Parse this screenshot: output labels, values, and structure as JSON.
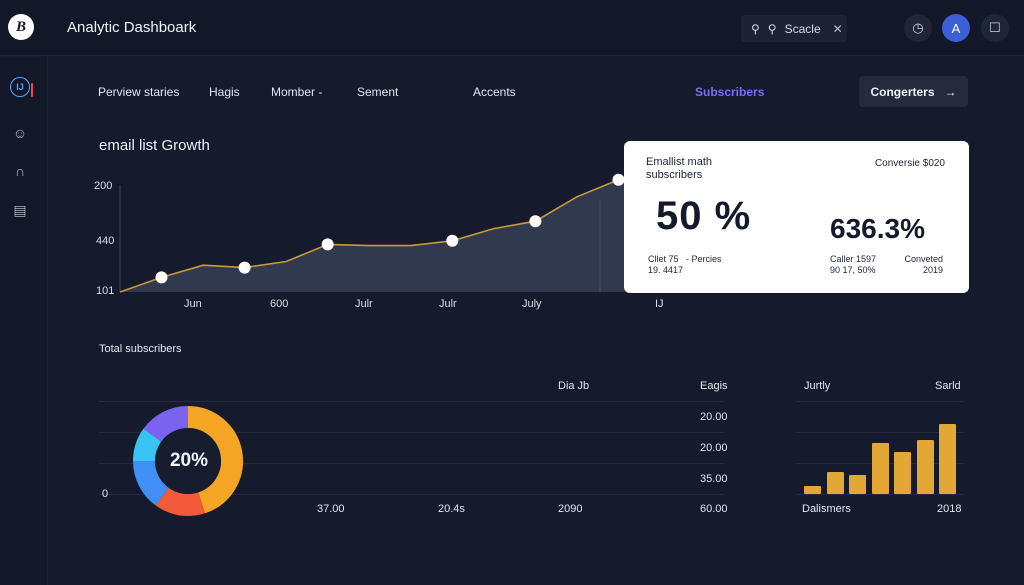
{
  "app": {
    "logo_letter": "B",
    "title": "Analytic Dashboark"
  },
  "search": {
    "text": "Scacle",
    "icon": "search-icon"
  },
  "topbar": {
    "timer_icon": "clock-icon",
    "avatar_letter": "A",
    "clipboard_icon": "clipboard-icon"
  },
  "sidebar": {
    "items": [
      {
        "icon": "badge-icon",
        "label": "IJ"
      },
      {
        "icon": "face-icon"
      },
      {
        "icon": "building-icon"
      },
      {
        "icon": "clipboard-icon"
      }
    ],
    "active_marker_color": "#ff3b5c"
  },
  "nav": {
    "items": [
      "Perview staries",
      "Hagis",
      "Momber -",
      "Sement",
      "Accents",
      "Subscribers"
    ],
    "active": "Subscribers",
    "button_label": "Congerters",
    "button_icon": "arrow-right-icon"
  },
  "growth": {
    "title": "email list Growth"
  },
  "chart_data": [
    {
      "type": "area",
      "title": "email list Growth",
      "y_ticks": [
        "200",
        "440",
        "101"
      ],
      "x_ticks": [
        "Jun",
        "600",
        "Julr",
        "Julr",
        "July",
        "IJ"
      ],
      "line_color": "#c99a3a",
      "marker_color": "#ffffff",
      "fill_color": "#3a4459",
      "note": "values estimated from marker heights; axis tick labels as printed",
      "points": [
        {
          "x": 0,
          "y": 0
        },
        {
          "x": 1,
          "y": 12,
          "marker": true
        },
        {
          "x": 2,
          "y": 22
        },
        {
          "x": 3,
          "y": 20,
          "marker": true
        },
        {
          "x": 4,
          "y": 25
        },
        {
          "x": 5,
          "y": 39,
          "marker": true
        },
        {
          "x": 6,
          "y": 38
        },
        {
          "x": 7,
          "y": 38
        },
        {
          "x": 8,
          "y": 42,
          "marker": true
        },
        {
          "x": 9,
          "y": 52
        },
        {
          "x": 10,
          "y": 58,
          "marker": true
        },
        {
          "x": 11,
          "y": 78
        },
        {
          "x": 12,
          "y": 92,
          "marker": true
        },
        {
          "x": 13,
          "y": 100
        }
      ]
    },
    {
      "type": "pie",
      "title": "Total subscribers",
      "center_label": "20%",
      "segments": [
        {
          "value": 45,
          "color": "#f5a524"
        },
        {
          "value": 15,
          "color": "#f25a3a"
        },
        {
          "value": 15,
          "color": "#3f8ff5"
        },
        {
          "value": 10,
          "color": "#38c4f2"
        },
        {
          "value": 15,
          "color": "#7b63f2"
        }
      ]
    },
    {
      "type": "bar",
      "labels": {
        "top_left": "Jurtly",
        "top_right": "Sarld",
        "bottom_left": "Dalismers",
        "bottom_right": "2018"
      },
      "color": "#e3a736",
      "values": [
        9,
        26,
        23,
        61,
        50,
        64,
        83
      ]
    }
  ],
  "card": {
    "title_line1": "Emallist math",
    "title_line2": "subscribers",
    "right_title": "Conversie $020",
    "big_value": "50 %",
    "big_value2": "636.3%",
    "s1_line1": "Cllet 75   - Percies",
    "s1_line2": "19. 4417",
    "s2_line1": "Caller 1597",
    "s2_line2": "90 17, 50%",
    "s3_line1": "Conveted",
    "s3_line2": "2019"
  },
  "subscribers": {
    "title": "Total subscribers",
    "zero": "0",
    "col_head1": "Dia Jb",
    "col_head2": "Eagis",
    "row_values": [
      "20.00",
      "20.00",
      "35.00"
    ],
    "bottom_values": [
      "37.00",
      "20.4s",
      "2090",
      "60.00"
    ]
  }
}
